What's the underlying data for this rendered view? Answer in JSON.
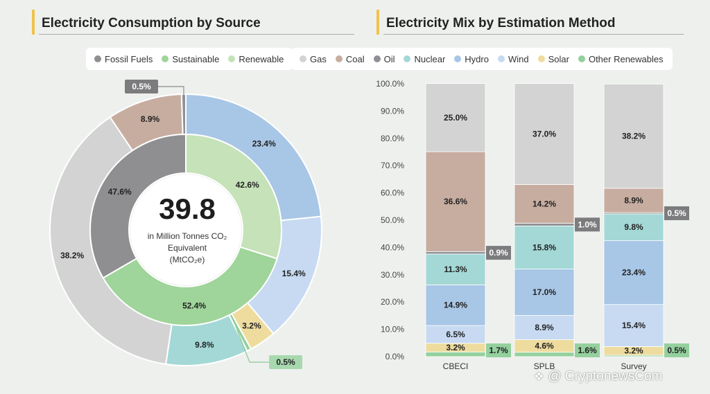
{
  "left": {
    "title": "Electricity Consumption by Source",
    "legend": [
      {
        "label": "Fossil Fuels",
        "color": "#8f8f91"
      },
      {
        "label": "Sustainable",
        "color": "#9fd49a"
      },
      {
        "label": "Renewable",
        "color": "#c5e2b8"
      }
    ],
    "center": {
      "value": "39.8",
      "line1": "in Million Tonnes CO₂",
      "line2": "Equivalent",
      "line3": "(MtCO₂e)"
    }
  },
  "right": {
    "title": "Electricity Mix by Estimation Method",
    "legend": [
      {
        "label": "Gas",
        "color": "#d3d3d3"
      },
      {
        "label": "Coal",
        "color": "#c7ada0"
      },
      {
        "label": "Oil",
        "color": "#8f9096"
      },
      {
        "label": "Nuclear",
        "color": "#a3d8d6"
      },
      {
        "label": "Hydro",
        "color": "#a8c6e6"
      },
      {
        "label": "Wind",
        "color": "#c7daf1"
      },
      {
        "label": "Solar",
        "color": "#eedc9f"
      },
      {
        "label": "Other Renewables",
        "color": "#94d09e"
      }
    ]
  },
  "chart_data": [
    {
      "type": "pie",
      "title": "Electricity Consumption by Source",
      "center_value": 39.8,
      "center_unit": "in Million Tonnes CO₂ Equivalent (MtCO₂e)",
      "inner_ring": [
        {
          "name": "Renewable",
          "value": 42.6,
          "label": "42.6%",
          "color": "#c5e2b8"
        },
        {
          "name": "Sustainable",
          "value": 52.4,
          "label": "52.4%",
          "color": "#9fd49a"
        },
        {
          "name": "Fossil Fuels",
          "value": 47.6,
          "label": "47.6%",
          "color": "#8f8f91"
        }
      ],
      "outer_ring": [
        {
          "name": "Hydro",
          "value": 23.4,
          "label": "23.4%",
          "color": "#a8c6e6"
        },
        {
          "name": "Wind",
          "value": 15.4,
          "label": "15.4%",
          "color": "#c7daf1"
        },
        {
          "name": "Solar",
          "value": 3.2,
          "label": "3.2%",
          "color": "#eedc9f"
        },
        {
          "name": "Other Renewables",
          "value": 0.5,
          "label": "0.5%",
          "color": "#94d09e"
        },
        {
          "name": "Nuclear",
          "value": 9.8,
          "label": "9.8%",
          "color": "#a3d8d6"
        },
        {
          "name": "Gas",
          "value": 38.2,
          "label": "38.2%",
          "color": "#d3d3d3"
        },
        {
          "name": "Coal",
          "value": 8.9,
          "label": "8.9%",
          "color": "#c7ada0"
        },
        {
          "name": "Oil",
          "value": 0.5,
          "label": "0.5%",
          "color": "#8f9096"
        }
      ]
    },
    {
      "type": "bar",
      "stacked": true,
      "title": "Electricity Mix by Estimation Method",
      "categories": [
        "CBECI",
        "SPLB",
        "Survey"
      ],
      "ylim": [
        0,
        100
      ],
      "yticks": [
        "0.0%",
        "10.0%",
        "20.0%",
        "30.0%",
        "40.0%",
        "50.0%",
        "60.0%",
        "70.0%",
        "80.0%",
        "90.0%",
        "100.0%"
      ],
      "series": [
        {
          "name": "Other Renewables",
          "color": "#94d09e",
          "values": [
            1.7,
            1.6,
            0.5
          ],
          "labels": [
            "1.7%",
            "1.6%",
            "0.5%"
          ]
        },
        {
          "name": "Solar",
          "color": "#eedc9f",
          "values": [
            3.2,
            4.6,
            3.2
          ],
          "labels": [
            "3.2%",
            "4.6%",
            "3.2%"
          ]
        },
        {
          "name": "Wind",
          "color": "#c7daf1",
          "values": [
            6.5,
            8.9,
            15.4
          ],
          "labels": [
            "6.5%",
            "8.9%",
            "15.4%"
          ]
        },
        {
          "name": "Hydro",
          "color": "#a8c6e6",
          "values": [
            14.9,
            17.0,
            23.4
          ],
          "labels": [
            "14.9%",
            "17.0%",
            "23.4%"
          ]
        },
        {
          "name": "Nuclear",
          "color": "#a3d8d6",
          "values": [
            11.3,
            15.8,
            9.8
          ],
          "labels": [
            "11.3%",
            "15.8%",
            "9.8%"
          ]
        },
        {
          "name": "Oil",
          "color": "#8f9096",
          "values": [
            0.9,
            1.0,
            0.5
          ],
          "labels": [
            "0.9%",
            "1.0%",
            "0.5%"
          ]
        },
        {
          "name": "Coal",
          "color": "#c7ada0",
          "values": [
            36.6,
            14.2,
            8.9
          ],
          "labels": [
            "36.6%",
            "14.2%",
            "8.9%"
          ]
        },
        {
          "name": "Gas",
          "color": "#d3d3d3",
          "values": [
            25.0,
            37.0,
            38.2
          ],
          "labels": [
            "25.0%",
            "37.0%",
            "38.2%"
          ]
        }
      ]
    }
  ],
  "watermark": "@ CryptonewsCom"
}
